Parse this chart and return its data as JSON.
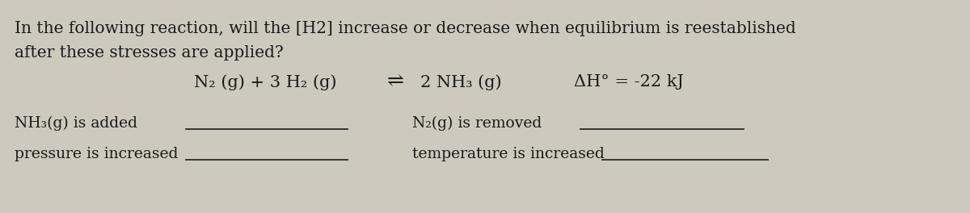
{
  "bg_color": "#cdc9be",
  "text_color": "#1a1a1a",
  "title_line1": "In the following reaction, will the [H2] increase or decrease when equilibrium is reestablished",
  "title_line2": "after these stresses are applied?",
  "equation_left": "N₂ (g) + 3 H₂ (g)",
  "equilibrium_arrow": "⇌",
  "equation_right": "2 NH₃ (g)",
  "delta_h": "ΔH° = -22 kJ",
  "stress1_label": "NH₃(g) is added",
  "stress2_label": "pressure is increased",
  "stress3_label": "N₂(g) is removed",
  "stress4_label": "temperature is increased",
  "line_color": "#2a2a2a",
  "font_size_title": 14.5,
  "font_size_eq": 15,
  "font_size_arrow": 18,
  "font_size_stress": 13.5
}
